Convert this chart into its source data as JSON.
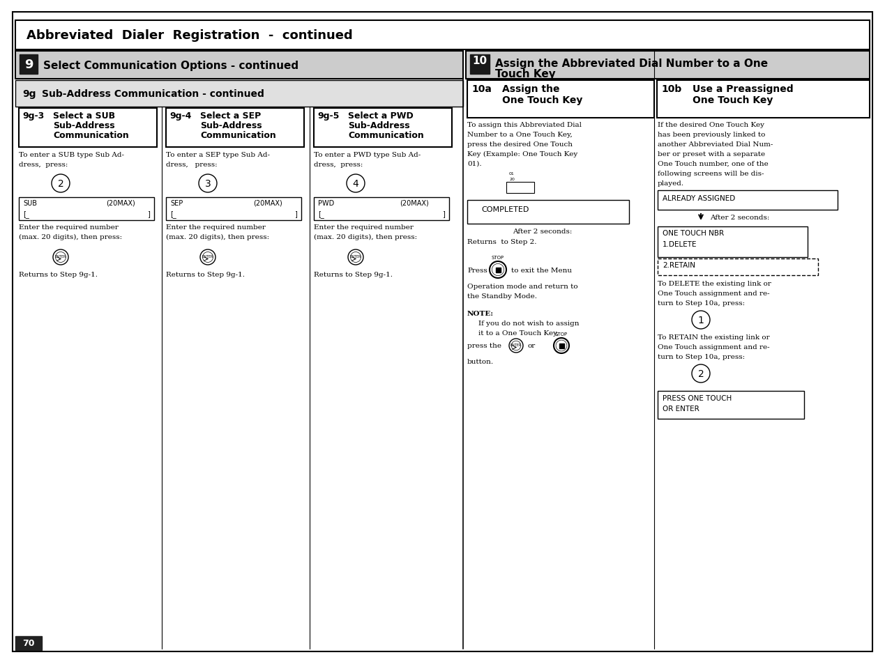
{
  "page_bg": "#ffffff",
  "main_title": "Abbreviated  Dialer  Registration  -  continued",
  "sec9_title": "Select Communication Options - continued",
  "sec10_line1": "Assign the Abbreviated Dial Number to a One",
  "sec10_line2": "Touch Key",
  "sub9g_title": "Sub-Address Communication - continued",
  "page_num": "70"
}
